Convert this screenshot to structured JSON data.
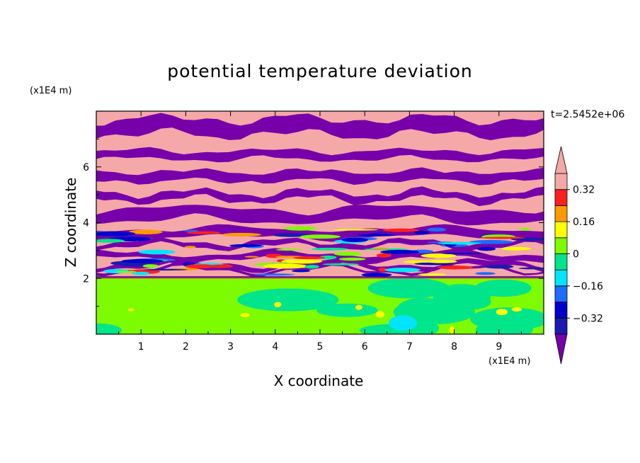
{
  "chart_data": {
    "type": "heatmap",
    "title": "potential temperature deviation",
    "xlabel": "X coordinate",
    "ylabel": "Z coordinate",
    "x_unit": "(x1E4 m)",
    "y_unit": "(x1E4 m)",
    "time_label": "t=2.5452e+06",
    "xlim": [
      0,
      10
    ],
    "ylim": [
      0,
      8
    ],
    "x_ticks": [
      1,
      2,
      3,
      4,
      5,
      6,
      7,
      8,
      9
    ],
    "y_ticks": [
      2,
      4,
      6
    ],
    "colorbar": {
      "levels": [
        -0.4,
        -0.32,
        -0.24,
        -0.16,
        -0.08,
        0,
        0.08,
        0.16,
        0.24,
        0.32,
        0.4
      ],
      "tick_labels": [
        "0.32",
        "0.16",
        "0",
        "−0.16",
        "−0.32"
      ],
      "tick_values": [
        0.32,
        0.16,
        0,
        -0.16,
        -0.32
      ],
      "colors": [
        "#7700aa",
        "#1a1ab0",
        "#0000cc",
        "#1e6bff",
        "#00e5ff",
        "#00e48a",
        "#7dfc00",
        "#ffff00",
        "#ff9900",
        "#ff2020",
        "#f4a8a8"
      ],
      "extend": "both"
    },
    "field": {
      "upper_layer_z": [
        2.0,
        8.0
      ],
      "upper_dominant": [
        "#f4a8a8",
        "#7700aa"
      ],
      "lower_layer_z": [
        0.0,
        2.0
      ],
      "lower_dominant": [
        "#7dfc00",
        "#00e48a"
      ]
    }
  }
}
